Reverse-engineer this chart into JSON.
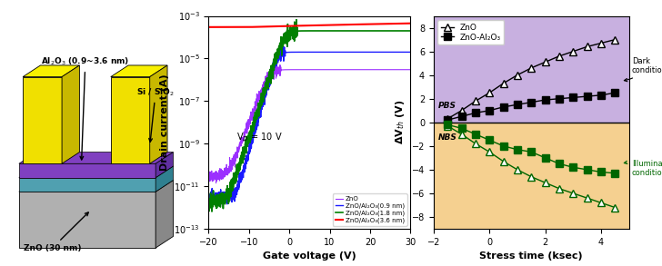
{
  "panel2_legend": [
    "ZnO",
    "ZnO/Al₂O₃(0.9 nm)",
    "ZnO/Al₂O₃(1.8 nm)",
    "ZnO/Al₂O₃(3.6 nm)"
  ],
  "panel2_colors": [
    "#9b30ff",
    "#1a1aff",
    "#008000",
    "#ff0000"
  ],
  "panel2_vd_label": "V$_D$ = 10 V",
  "panel2_xlabel": "Gate voltage (V)",
  "panel2_ylabel": "Drain current (A)",
  "panel2_xlim": [
    -20,
    30
  ],
  "panel2_ylim_log": [
    -13,
    -3
  ],
  "panel3_dark_bg": "#c8b0e0",
  "panel3_light_bg": "#f5d090",
  "panel3_xlabel": "Stress time (ksec)",
  "panel3_ylabel": "ΔV$_{th}$ (V)",
  "panel3_xlim": [
    -2,
    5
  ],
  "panel3_ylim": [
    -9,
    9
  ],
  "panel3_legend": [
    "ZnO",
    "ZnO-Al₂O₃"
  ],
  "pbs_zno_x": [
    -1.5,
    -1.0,
    -0.5,
    0.0,
    0.5,
    1.0,
    1.5,
    2.0,
    2.5,
    3.0,
    3.5,
    4.0,
    4.5
  ],
  "pbs_zno_y": [
    0.3,
    1.0,
    1.8,
    2.5,
    3.3,
    4.0,
    4.6,
    5.1,
    5.6,
    6.0,
    6.4,
    6.7,
    7.0
  ],
  "pbs_znoal_x": [
    -1.5,
    -1.0,
    -0.5,
    0.0,
    0.5,
    1.0,
    1.5,
    2.0,
    2.5,
    3.0,
    3.5,
    4.0,
    4.5
  ],
  "pbs_znoal_y": [
    0.2,
    0.5,
    0.8,
    1.0,
    1.3,
    1.5,
    1.7,
    1.9,
    2.0,
    2.1,
    2.2,
    2.3,
    2.5
  ],
  "nbs_zno_x": [
    -1.5,
    -1.0,
    -0.5,
    0.0,
    0.5,
    1.0,
    1.5,
    2.0,
    2.5,
    3.0,
    3.5,
    4.0,
    4.5
  ],
  "nbs_zno_y": [
    -0.3,
    -1.0,
    -1.8,
    -2.5,
    -3.3,
    -4.0,
    -4.6,
    -5.1,
    -5.6,
    -6.0,
    -6.4,
    -6.8,
    -7.2
  ],
  "nbs_znoal_x": [
    -1.5,
    -1.0,
    -0.5,
    0.0,
    0.5,
    1.0,
    1.5,
    2.0,
    2.5,
    3.0,
    3.5,
    4.0,
    4.5
  ],
  "nbs_znoal_y": [
    -0.2,
    -0.5,
    -1.0,
    -1.5,
    -2.0,
    -2.3,
    -2.5,
    -3.0,
    -3.5,
    -3.8,
    -4.0,
    -4.2,
    -4.3
  ],
  "gray_light": "#b0b0b0",
  "gray_dark": "#888888",
  "yellow": "#f0e000",
  "yellow_dark": "#c8b800",
  "purple": "#8040c0",
  "teal": "#50a0b0",
  "teal_dark": "#308090"
}
